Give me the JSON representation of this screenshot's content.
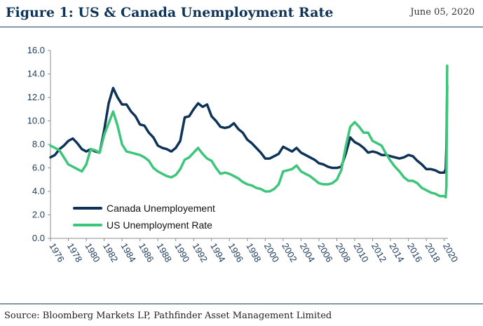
{
  "header": {
    "title": "Figure 1: US & Canada Unemployment Rate",
    "date": "June 05, 2020"
  },
  "footer": {
    "source": "Source: Bloomberg Markets LP, Pathfinder Asset Management Limited"
  },
  "chart_data": {
    "type": "line",
    "title": "Figure 1: US & Canada Unemployment Rate",
    "xlabel": "",
    "ylabel": "",
    "xlim": [
      1976,
      2020.42
    ],
    "ylim": [
      0,
      16
    ],
    "yticks": [
      "0.0",
      "2.0",
      "4.0",
      "6.0",
      "8.0",
      "10.0",
      "12.0",
      "14.0",
      "16.0"
    ],
    "xticks": [
      "1976",
      "1978",
      "1980",
      "1982",
      "1984",
      "1986",
      "1988",
      "1990",
      "1992",
      "1994",
      "1996",
      "1998",
      "2000",
      "2002",
      "2004",
      "2006",
      "2008",
      "2010",
      "2012",
      "2014",
      "2016",
      "2018",
      "2020"
    ],
    "grid": false,
    "legend_position": "bottom-left",
    "series": [
      {
        "name": "Canada Unemployement",
        "color": "#0d3358",
        "points": [
          [
            1976.0,
            6.9
          ],
          [
            1976.5,
            7.1
          ],
          [
            1977.0,
            7.6
          ],
          [
            1977.5,
            7.9
          ],
          [
            1978.0,
            8.3
          ],
          [
            1978.5,
            8.5
          ],
          [
            1979.0,
            8.1
          ],
          [
            1979.5,
            7.6
          ],
          [
            1980.0,
            7.4
          ],
          [
            1980.5,
            7.6
          ],
          [
            1981.0,
            7.4
          ],
          [
            1981.5,
            7.3
          ],
          [
            1982.0,
            9.2
          ],
          [
            1982.5,
            11.5
          ],
          [
            1983.0,
            12.8
          ],
          [
            1983.5,
            12.0
          ],
          [
            1984.0,
            11.4
          ],
          [
            1984.5,
            11.4
          ],
          [
            1985.0,
            10.8
          ],
          [
            1985.5,
            10.4
          ],
          [
            1986.0,
            9.7
          ],
          [
            1986.5,
            9.6
          ],
          [
            1987.0,
            9.0
          ],
          [
            1987.5,
            8.6
          ],
          [
            1988.0,
            7.9
          ],
          [
            1988.5,
            7.7
          ],
          [
            1989.0,
            7.6
          ],
          [
            1989.5,
            7.4
          ],
          [
            1990.0,
            7.7
          ],
          [
            1990.5,
            8.3
          ],
          [
            1991.0,
            10.3
          ],
          [
            1991.5,
            10.4
          ],
          [
            1992.0,
            11.0
          ],
          [
            1992.5,
            11.5
          ],
          [
            1993.0,
            11.2
          ],
          [
            1993.5,
            11.4
          ],
          [
            1994.0,
            10.4
          ],
          [
            1994.5,
            10.0
          ],
          [
            1995.0,
            9.5
          ],
          [
            1995.5,
            9.4
          ],
          [
            1996.0,
            9.5
          ],
          [
            1996.5,
            9.8
          ],
          [
            1997.0,
            9.3
          ],
          [
            1997.5,
            9.0
          ],
          [
            1998.0,
            8.4
          ],
          [
            1998.5,
            8.1
          ],
          [
            1999.0,
            7.7
          ],
          [
            1999.5,
            7.3
          ],
          [
            2000.0,
            6.8
          ],
          [
            2000.5,
            6.8
          ],
          [
            2001.0,
            7.0
          ],
          [
            2001.5,
            7.2
          ],
          [
            2002.0,
            7.8
          ],
          [
            2002.5,
            7.6
          ],
          [
            2003.0,
            7.4
          ],
          [
            2003.5,
            7.7
          ],
          [
            2004.0,
            7.3
          ],
          [
            2004.5,
            7.1
          ],
          [
            2005.0,
            6.9
          ],
          [
            2005.5,
            6.7
          ],
          [
            2006.0,
            6.4
          ],
          [
            2006.5,
            6.3
          ],
          [
            2007.0,
            6.1
          ],
          [
            2007.5,
            6.0
          ],
          [
            2008.0,
            6.0
          ],
          [
            2008.5,
            6.1
          ],
          [
            2009.0,
            7.2
          ],
          [
            2009.5,
            8.6
          ],
          [
            2010.0,
            8.2
          ],
          [
            2010.5,
            8.0
          ],
          [
            2011.0,
            7.7
          ],
          [
            2011.5,
            7.3
          ],
          [
            2012.0,
            7.4
          ],
          [
            2012.5,
            7.3
          ],
          [
            2013.0,
            7.1
          ],
          [
            2013.5,
            7.1
          ],
          [
            2014.0,
            7.0
          ],
          [
            2014.5,
            6.9
          ],
          [
            2015.0,
            6.8
          ],
          [
            2015.5,
            6.9
          ],
          [
            2016.0,
            7.1
          ],
          [
            2016.5,
            7.0
          ],
          [
            2017.0,
            6.6
          ],
          [
            2017.5,
            6.3
          ],
          [
            2018.0,
            5.9
          ],
          [
            2018.5,
            5.9
          ],
          [
            2019.0,
            5.8
          ],
          [
            2019.5,
            5.6
          ],
          [
            2020.0,
            5.6
          ],
          [
            2020.17,
            5.9
          ],
          [
            2020.25,
            7.8
          ],
          [
            2020.33,
            13.0
          ]
        ]
      },
      {
        "name": "US Unemployment Rate",
        "color": "#3dc57a",
        "points": [
          [
            1976.0,
            7.9
          ],
          [
            1976.5,
            7.7
          ],
          [
            1977.0,
            7.5
          ],
          [
            1977.5,
            6.9
          ],
          [
            1978.0,
            6.3
          ],
          [
            1978.5,
            6.1
          ],
          [
            1979.0,
            5.9
          ],
          [
            1979.5,
            5.7
          ],
          [
            1980.0,
            6.3
          ],
          [
            1980.5,
            7.6
          ],
          [
            1981.0,
            7.5
          ],
          [
            1981.5,
            7.3
          ],
          [
            1982.0,
            8.8
          ],
          [
            1982.5,
            9.8
          ],
          [
            1983.0,
            10.8
          ],
          [
            1983.5,
            9.6
          ],
          [
            1984.0,
            8.0
          ],
          [
            1984.5,
            7.4
          ],
          [
            1985.0,
            7.3
          ],
          [
            1985.5,
            7.2
          ],
          [
            1986.0,
            7.1
          ],
          [
            1986.5,
            6.9
          ],
          [
            1987.0,
            6.6
          ],
          [
            1987.5,
            6.0
          ],
          [
            1988.0,
            5.7
          ],
          [
            1988.5,
            5.5
          ],
          [
            1989.0,
            5.3
          ],
          [
            1989.5,
            5.2
          ],
          [
            1990.0,
            5.4
          ],
          [
            1990.5,
            5.9
          ],
          [
            1991.0,
            6.7
          ],
          [
            1991.5,
            6.9
          ],
          [
            1992.0,
            7.3
          ],
          [
            1992.5,
            7.7
          ],
          [
            1993.0,
            7.2
          ],
          [
            1993.5,
            6.8
          ],
          [
            1994.0,
            6.6
          ],
          [
            1994.5,
            6.0
          ],
          [
            1995.0,
            5.5
          ],
          [
            1995.5,
            5.6
          ],
          [
            1996.0,
            5.5
          ],
          [
            1996.5,
            5.3
          ],
          [
            1997.0,
            5.1
          ],
          [
            1997.5,
            4.8
          ],
          [
            1998.0,
            4.6
          ],
          [
            1998.5,
            4.5
          ],
          [
            1999.0,
            4.3
          ],
          [
            1999.5,
            4.2
          ],
          [
            2000.0,
            4.0
          ],
          [
            2000.5,
            4.0
          ],
          [
            2001.0,
            4.2
          ],
          [
            2001.5,
            4.6
          ],
          [
            2002.0,
            5.7
          ],
          [
            2002.5,
            5.8
          ],
          [
            2003.0,
            5.9
          ],
          [
            2003.5,
            6.2
          ],
          [
            2004.0,
            5.7
          ],
          [
            2004.5,
            5.5
          ],
          [
            2005.0,
            5.3
          ],
          [
            2005.5,
            5.0
          ],
          [
            2006.0,
            4.7
          ],
          [
            2006.5,
            4.6
          ],
          [
            2007.0,
            4.6
          ],
          [
            2007.5,
            4.7
          ],
          [
            2008.0,
            5.0
          ],
          [
            2008.5,
            5.8
          ],
          [
            2009.0,
            7.8
          ],
          [
            2009.5,
            9.5
          ],
          [
            2010.0,
            9.9
          ],
          [
            2010.5,
            9.5
          ],
          [
            2011.0,
            9.0
          ],
          [
            2011.5,
            9.0
          ],
          [
            2012.0,
            8.3
          ],
          [
            2012.5,
            8.1
          ],
          [
            2013.0,
            7.9
          ],
          [
            2013.5,
            7.2
          ],
          [
            2014.0,
            6.6
          ],
          [
            2014.5,
            6.1
          ],
          [
            2015.0,
            5.7
          ],
          [
            2015.5,
            5.2
          ],
          [
            2016.0,
            4.9
          ],
          [
            2016.5,
            4.9
          ],
          [
            2017.0,
            4.7
          ],
          [
            2017.5,
            4.3
          ],
          [
            2018.0,
            4.1
          ],
          [
            2018.5,
            3.9
          ],
          [
            2019.0,
            3.8
          ],
          [
            2019.5,
            3.6
          ],
          [
            2020.0,
            3.6
          ],
          [
            2020.17,
            3.5
          ],
          [
            2020.25,
            4.4
          ],
          [
            2020.33,
            14.7
          ]
        ]
      }
    ]
  }
}
